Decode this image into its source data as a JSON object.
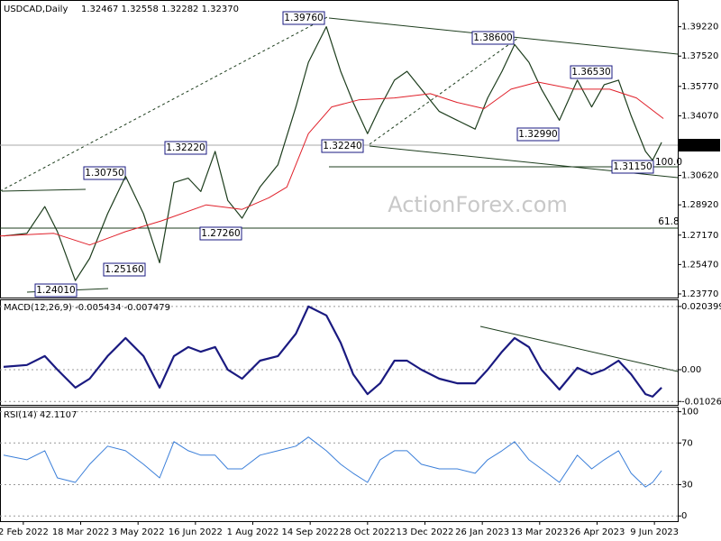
{
  "chart_data": [
    {
      "type": "line",
      "title": "USDCAD,Daily",
      "subtitle": "1.32467 1.32558 1.32282 1.32370",
      "watermark": "ActionForex.com",
      "xlim": [
        "2022-01-14",
        "2023-06-28"
      ],
      "xticks": [
        {
          "value": "2022-02-02",
          "label": "2 Feb 2022"
        },
        {
          "value": "2022-03-18",
          "label": "18 Mar 2022"
        },
        {
          "value": "2022-05-03",
          "label": "3 May 2022"
        },
        {
          "value": "2022-06-16",
          "label": "16 Jun 2022"
        },
        {
          "value": "2022-08-01",
          "label": "1 Aug 2022"
        },
        {
          "value": "2022-09-14",
          "label": "14 Sep 2022"
        },
        {
          "value": "2022-10-28",
          "label": "28 Oct 2022"
        },
        {
          "value": "2022-12-13",
          "label": "13 Dec 2022"
        },
        {
          "value": "2023-01-26",
          "label": "26 Jan 2023"
        },
        {
          "value": "2023-03-13",
          "label": "13 Mar 2023"
        },
        {
          "value": "2023-04-26",
          "label": "26 Apr 2023"
        },
        {
          "value": "2023-06-09",
          "label": "9 Jun 2023"
        }
      ],
      "ylim": [
        1.2356,
        1.4066
      ],
      "yticks": [
        {
          "value": 1.3922,
          "label": "1.39220"
        },
        {
          "value": 1.3752,
          "label": "1.37520"
        },
        {
          "value": 1.3577,
          "label": "1.35770"
        },
        {
          "value": 1.3407,
          "label": "1.34070"
        },
        {
          "value": 1.3062,
          "label": "1.30620"
        },
        {
          "value": 1.2892,
          "label": "1.28920"
        },
        {
          "value": 1.2717,
          "label": "1.27170"
        },
        {
          "value": 1.2547,
          "label": "1.25470"
        },
        {
          "value": 1.2377,
          "label": "1.23770"
        }
      ],
      "last_price": {
        "value": 1.3237,
        "label": "1.32370"
      },
      "grid": false,
      "annotations": [
        "1.39760",
        "1.38600",
        "1.36530",
        "1.32990",
        "1.32240",
        "1.31150",
        "1.32220",
        "1.30750",
        "1.27260",
        "1.25160",
        "1.24010",
        "100.0",
        "61.8"
      ],
      "series": [
        {
          "color": "#1d3d1d",
          "width": 1.2,
          "x": [
            "2022-01-18",
            "2022-02-04",
            "2022-02-18",
            "2022-03-01",
            "2022-03-15",
            "2022-03-25",
            "2022-04-08",
            "2022-04-22",
            "2022-05-06",
            "2022-05-19",
            "2022-05-31",
            "2022-06-10",
            "2022-06-21",
            "2022-07-01",
            "2022-07-12",
            "2022-07-22",
            "2022-08-05",
            "2022-08-19",
            "2022-09-02",
            "2022-09-13",
            "2022-09-27",
            "2022-10-07",
            "2022-10-18",
            "2022-10-28",
            "2022-11-08",
            "2022-11-18",
            "2022-11-29",
            "2022-12-09",
            "2022-12-23",
            "2023-01-06",
            "2023-01-20",
            "2023-01-31",
            "2023-02-10",
            "2023-02-21",
            "2023-03-03",
            "2023-03-14",
            "2023-03-28",
            "2023-04-11",
            "2023-04-21",
            "2023-05-02",
            "2023-05-12",
            "2023-05-23",
            "2023-06-02",
            "2023-06-08",
            "2023-06-15"
          ],
          "values": [
            1.2712,
            1.2727,
            1.2882,
            1.2737,
            1.2454,
            1.2583,
            1.2841,
            1.3057,
            1.2841,
            1.2557,
            1.3021,
            1.3046,
            1.2969,
            1.3201,
            1.2918,
            1.2815,
            1.2995,
            1.3124,
            1.3458,
            1.3716,
            1.3922,
            1.3664,
            1.3484,
            1.3304,
            1.3458,
            1.3613,
            1.3664,
            1.3561,
            1.3432,
            1.3381,
            1.333,
            1.351,
            1.3664,
            1.3819,
            1.3716,
            1.3561,
            1.3381,
            1.3613,
            1.3458,
            1.3587,
            1.3613,
            1.3407,
            1.3201,
            1.315,
            1.3253
          ]
        },
        {
          "color": "#e0202a",
          "width": 1,
          "x": [
            "2022-01-14",
            "2022-02-25",
            "2022-03-25",
            "2022-04-22",
            "2022-05-20",
            "2022-06-24",
            "2022-07-22",
            "2022-08-12",
            "2022-08-26",
            "2022-09-13",
            "2022-09-30",
            "2022-10-21",
            "2022-11-18",
            "2022-12-16",
            "2023-01-06",
            "2023-01-27",
            "2023-02-17",
            "2023-03-10",
            "2023-04-07",
            "2023-05-05",
            "2023-05-26",
            "2023-06-16"
          ],
          "values": [
            1.2712,
            1.2727,
            1.266,
            1.2737,
            1.2799,
            1.2892,
            1.2866,
            1.2933,
            1.2995,
            1.3304,
            1.3458,
            1.3499,
            1.351,
            1.3535,
            1.3484,
            1.3448,
            1.3561,
            1.3602,
            1.3561,
            1.3561,
            1.351,
            1.3391
          ]
        }
      ]
    },
    {
      "type": "line",
      "title": "MACD(12,26,9) -0.005434 -0.007479",
      "xlim": [
        "2022-01-14",
        "2023-06-28"
      ],
      "ylim": [
        -0.01135,
        0.0224
      ],
      "yticks": [
        {
          "value": 0.020399,
          "label": "0.020399"
        },
        {
          "value": 0,
          "label": "0.00"
        },
        {
          "value": -0.01026,
          "label": "-0.01026"
        }
      ],
      "grid": true,
      "series": [
        {
          "color": "#1a1a80",
          "width": 2.2,
          "x": [
            "2022-01-18",
            "2022-02-04",
            "2022-02-18",
            "2022-03-01",
            "2022-03-15",
            "2022-03-25",
            "2022-04-08",
            "2022-04-22",
            "2022-05-06",
            "2022-05-19",
            "2022-05-31",
            "2022-06-10",
            "2022-06-21",
            "2022-07-01",
            "2022-07-12",
            "2022-07-22",
            "2022-08-05",
            "2022-08-19",
            "2022-09-02",
            "2022-09-13",
            "2022-09-27",
            "2022-10-07",
            "2022-10-18",
            "2022-10-28",
            "2022-11-08",
            "2022-11-18",
            "2022-11-29",
            "2022-12-09",
            "2022-12-23",
            "2023-01-06",
            "2023-01-20",
            "2023-01-31",
            "2023-02-10",
            "2023-02-21",
            "2023-03-03",
            "2023-03-14",
            "2023-03-28",
            "2023-04-11",
            "2023-04-21",
            "2023-05-02",
            "2023-05-12",
            "2023-05-23",
            "2023-06-02",
            "2023-06-08",
            "2023-06-15"
          ],
          "values": [
            0.0009,
            0.0015,
            0.0044,
            0.0,
            -0.0058,
            -0.0029,
            0.0044,
            0.0102,
            0.0044,
            -0.0058,
            0.0044,
            0.0073,
            0.0058,
            0.0073,
            0.0,
            -0.0029,
            0.0029,
            0.0044,
            0.0116,
            0.0204,
            0.0175,
            0.0087,
            -0.0015,
            -0.0079,
            -0.0044,
            0.0029,
            0.0029,
            0.0,
            -0.0029,
            -0.0044,
            -0.0044,
            0.0,
            0.0058,
            0.0102,
            0.0073,
            0.0,
            -0.0064,
            0.0006,
            -0.0015,
            0.0,
            0.0029,
            -0.0015,
            -0.0079,
            -0.0087,
            -0.0058
          ]
        }
      ]
    },
    {
      "type": "line",
      "title": "RSI(14) 42.1107",
      "xlim": [
        "2022-01-14",
        "2023-06-28"
      ],
      "ylim": [
        -5,
        104
      ],
      "yticks": [
        100,
        70,
        30,
        0
      ],
      "grid": true,
      "series": [
        {
          "color": "#3b7fd9",
          "width": 1,
          "x": [
            "2022-01-18",
            "2022-02-04",
            "2022-02-18",
            "2022-03-01",
            "2022-03-15",
            "2022-03-25",
            "2022-04-08",
            "2022-04-22",
            "2022-05-06",
            "2022-05-19",
            "2022-05-31",
            "2022-06-10",
            "2022-06-21",
            "2022-07-01",
            "2022-07-12",
            "2022-07-22",
            "2022-08-05",
            "2022-08-19",
            "2022-09-02",
            "2022-09-13",
            "2022-09-27",
            "2022-10-07",
            "2022-10-18",
            "2022-10-28",
            "2022-11-08",
            "2022-11-18",
            "2022-11-29",
            "2022-12-09",
            "2022-12-23",
            "2023-01-06",
            "2023-01-20",
            "2023-01-31",
            "2023-02-10",
            "2023-02-21",
            "2023-03-03",
            "2023-03-14",
            "2023-03-28",
            "2023-04-11",
            "2023-04-21",
            "2023-05-02",
            "2023-05-12",
            "2023-05-23",
            "2023-06-02",
            "2023-06-08",
            "2023-06-15"
          ],
          "values": [
            58.3,
            53.9,
            62.6,
            36.5,
            32.2,
            49.6,
            67.0,
            62.6,
            49.6,
            36.5,
            71.3,
            62.6,
            58.3,
            58.3,
            45.2,
            45.2,
            58.3,
            62.6,
            67.0,
            75.7,
            62.6,
            49.6,
            40.9,
            32.2,
            53.9,
            62.6,
            62.6,
            49.6,
            45.2,
            45.2,
            40.9,
            53.9,
            62.6,
            71.3,
            53.9,
            45.2,
            32.2,
            58.3,
            45.2,
            53.9,
            62.6,
            40.9,
            27.8,
            32.2,
            43.5
          ]
        }
      ]
    }
  ]
}
